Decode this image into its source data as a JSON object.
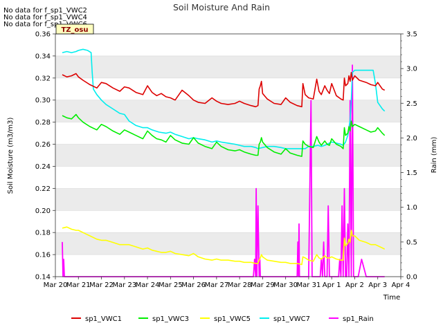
{
  "chart_data": {
    "type": "line",
    "title": "Soil Moisture And Rain",
    "xlabel": "Time",
    "ylabel": "Soil Moisture (m3/m3)",
    "y2label": "Rain (mm)",
    "xlim": [
      0,
      15
    ],
    "ylim": [
      0.14,
      0.36
    ],
    "y2lim": [
      0.0,
      3.5
    ],
    "x_ticks": [
      0,
      1,
      2,
      3,
      4,
      5,
      6,
      7,
      8,
      9,
      10,
      11,
      12,
      13,
      14,
      15
    ],
    "x_tick_labels": [
      "Mar 20",
      "Mar 21",
      "Mar 22",
      "Mar 23",
      "Mar 24",
      "Mar 25",
      "Mar 26",
      "Mar 27",
      "Mar 28",
      "Mar 29",
      "Mar 30",
      "Mar 31",
      "Apr 1",
      "Apr 2",
      "Apr 3",
      "Apr 4"
    ],
    "y_ticks": [
      "0.14",
      "0.16",
      "0.18",
      "0.20",
      "0.22",
      "0.24",
      "0.26",
      "0.28",
      "0.30",
      "0.32",
      "0.34",
      "0.36"
    ],
    "y2_ticks": [
      "0.0",
      "0.5",
      "1.0",
      "1.5",
      "2.0",
      "2.5",
      "3.0",
      "3.5"
    ],
    "nodata_messages": [
      "No data for f_sp1_VWC2",
      "No data for f_sp1_VWC4",
      "No data for f_sp1_VWC6"
    ],
    "badge": "TZ_osu",
    "legend_position": "bottom",
    "colors": {
      "band": "#ebebeb",
      "grid": "#d9d9d9"
    },
    "series": [
      {
        "name": "sp1_VWC1",
        "color": "#dd0000",
        "axis": "left",
        "x": [
          0.3,
          0.5,
          0.7,
          0.9,
          1.0,
          1.2,
          1.5,
          1.8,
          2.0,
          2.2,
          2.5,
          2.8,
          3.0,
          3.2,
          3.5,
          3.8,
          4.0,
          4.2,
          4.4,
          4.6,
          4.8,
          5.0,
          5.2,
          5.5,
          5.8,
          6.0,
          6.2,
          6.5,
          6.8,
          7.0,
          7.2,
          7.5,
          7.8,
          8.0,
          8.2,
          8.5,
          8.7,
          8.8,
          8.85,
          8.9,
          8.95,
          9.0,
          9.2,
          9.5,
          9.8,
          10.0,
          10.2,
          10.5,
          10.7,
          10.75,
          10.85,
          11.0,
          11.2,
          11.35,
          11.45,
          11.55,
          11.7,
          11.8,
          11.9,
          12.0,
          12.2,
          12.4,
          12.5,
          12.55,
          12.6,
          12.7,
          12.75,
          12.8,
          12.85,
          12.9,
          13.0,
          13.2,
          13.5,
          13.7,
          13.9,
          14.0,
          14.2,
          14.3
        ],
        "y": [
          0.323,
          0.321,
          0.322,
          0.324,
          0.321,
          0.318,
          0.314,
          0.311,
          0.316,
          0.315,
          0.311,
          0.308,
          0.312,
          0.311,
          0.307,
          0.305,
          0.313,
          0.307,
          0.304,
          0.306,
          0.303,
          0.302,
          0.3,
          0.309,
          0.304,
          0.3,
          0.298,
          0.297,
          0.302,
          0.299,
          0.297,
          0.296,
          0.297,
          0.299,
          0.297,
          0.295,
          0.294,
          0.295,
          0.31,
          0.313,
          0.317,
          0.306,
          0.301,
          0.297,
          0.296,
          0.302,
          0.298,
          0.295,
          0.294,
          0.315,
          0.305,
          0.302,
          0.301,
          0.319,
          0.308,
          0.305,
          0.313,
          0.309,
          0.306,
          0.315,
          0.304,
          0.301,
          0.3,
          0.32,
          0.313,
          0.315,
          0.322,
          0.317,
          0.325,
          0.318,
          0.322,
          0.318,
          0.316,
          0.314,
          0.313,
          0.316,
          0.31,
          0.309
        ]
      },
      {
        "name": "sp1_VWC3",
        "color": "#00ee00",
        "axis": "left",
        "x": [
          0.3,
          0.5,
          0.7,
          0.9,
          1.0,
          1.2,
          1.5,
          1.8,
          2.0,
          2.2,
          2.5,
          2.8,
          3.0,
          3.2,
          3.5,
          3.8,
          4.0,
          4.2,
          4.4,
          4.6,
          4.8,
          5.0,
          5.2,
          5.5,
          5.8,
          6.0,
          6.2,
          6.5,
          6.8,
          7.0,
          7.2,
          7.5,
          7.8,
          8.0,
          8.2,
          8.5,
          8.7,
          8.8,
          8.85,
          8.9,
          8.95,
          9.0,
          9.2,
          9.5,
          9.8,
          10.0,
          10.2,
          10.5,
          10.7,
          10.75,
          10.85,
          11.0,
          11.2,
          11.35,
          11.45,
          11.55,
          11.7,
          11.8,
          11.9,
          12.0,
          12.2,
          12.4,
          12.5,
          12.55,
          12.6,
          12.7,
          12.75,
          12.8,
          12.85,
          12.9,
          13.0,
          13.2,
          13.5,
          13.7,
          13.9,
          14.0,
          14.2,
          14.3
        ],
        "y": [
          0.286,
          0.284,
          0.283,
          0.287,
          0.284,
          0.28,
          0.276,
          0.273,
          0.278,
          0.276,
          0.272,
          0.269,
          0.273,
          0.271,
          0.268,
          0.265,
          0.272,
          0.268,
          0.265,
          0.264,
          0.262,
          0.268,
          0.264,
          0.261,
          0.26,
          0.266,
          0.261,
          0.258,
          0.256,
          0.262,
          0.258,
          0.255,
          0.254,
          0.255,
          0.253,
          0.251,
          0.25,
          0.25,
          0.26,
          0.262,
          0.266,
          0.262,
          0.257,
          0.253,
          0.251,
          0.256,
          0.252,
          0.25,
          0.249,
          0.263,
          0.26,
          0.258,
          0.257,
          0.267,
          0.262,
          0.259,
          0.263,
          0.26,
          0.259,
          0.265,
          0.26,
          0.258,
          0.256,
          0.275,
          0.268,
          0.27,
          0.276,
          0.272,
          0.281,
          0.276,
          0.278,
          0.276,
          0.273,
          0.271,
          0.272,
          0.275,
          0.27,
          0.268
        ]
      },
      {
        "name": "sp1_VWC5",
        "color": "#ffff00",
        "axis": "left",
        "x": [
          0.3,
          0.5,
          0.7,
          0.9,
          1.0,
          1.2,
          1.5,
          1.8,
          2.0,
          2.2,
          2.5,
          2.8,
          3.0,
          3.2,
          3.5,
          3.8,
          4.0,
          4.2,
          4.4,
          4.6,
          4.8,
          5.0,
          5.2,
          5.5,
          5.8,
          6.0,
          6.2,
          6.5,
          6.8,
          7.0,
          7.2,
          7.5,
          7.8,
          8.0,
          8.2,
          8.5,
          8.7,
          8.8,
          8.85,
          8.9,
          8.95,
          9.0,
          9.2,
          9.5,
          9.8,
          10.0,
          10.2,
          10.5,
          10.7,
          10.75,
          10.85,
          11.0,
          11.2,
          11.35,
          11.45,
          11.55,
          11.7,
          11.8,
          11.9,
          12.0,
          12.2,
          12.4,
          12.5,
          12.55,
          12.6,
          12.7,
          12.75,
          12.8,
          12.85,
          12.9,
          13.0,
          13.2,
          13.5,
          13.7,
          13.9,
          14.0,
          14.2,
          14.3
        ],
        "y": [
          0.184,
          0.185,
          0.183,
          0.182,
          0.182,
          0.18,
          0.177,
          0.174,
          0.173,
          0.173,
          0.171,
          0.169,
          0.169,
          0.169,
          0.167,
          0.165,
          0.166,
          0.164,
          0.163,
          0.162,
          0.162,
          0.163,
          0.161,
          0.16,
          0.159,
          0.161,
          0.158,
          0.156,
          0.155,
          0.156,
          0.155,
          0.155,
          0.154,
          0.154,
          0.153,
          0.153,
          0.152,
          0.152,
          0.155,
          0.157,
          0.16,
          0.158,
          0.155,
          0.154,
          0.153,
          0.153,
          0.152,
          0.152,
          0.151,
          0.158,
          0.157,
          0.155,
          0.154,
          0.16,
          0.157,
          0.156,
          0.159,
          0.157,
          0.157,
          0.158,
          0.156,
          0.155,
          0.155,
          0.175,
          0.168,
          0.17,
          0.174,
          0.171,
          0.182,
          0.177,
          0.177,
          0.173,
          0.171,
          0.169,
          0.169,
          0.168,
          0.166,
          0.165
        ]
      },
      {
        "name": "sp1_VWC7",
        "color": "#00eeee",
        "axis": "left",
        "x": [
          0.3,
          0.5,
          0.7,
          0.9,
          1.0,
          1.2,
          1.4,
          1.55,
          1.6,
          1.65,
          1.8,
          2.0,
          2.2,
          2.5,
          2.8,
          3.0,
          3.2,
          3.5,
          3.8,
          4.0,
          4.2,
          4.5,
          4.8,
          5.0,
          5.2,
          5.5,
          5.8,
          6.0,
          6.2,
          6.5,
          6.8,
          7.0,
          7.2,
          7.5,
          7.8,
          8.0,
          8.2,
          8.5,
          8.7,
          8.8,
          9.0,
          9.2,
          9.5,
          9.8,
          10.0,
          10.2,
          10.5,
          10.7,
          10.85,
          11.0,
          11.2,
          11.4,
          11.55,
          11.7,
          11.9,
          12.0,
          12.2,
          12.4,
          12.5,
          12.6,
          12.7,
          12.75,
          12.8,
          12.85,
          12.9,
          13.0,
          13.2,
          13.4,
          13.6,
          13.8,
          13.9,
          14.0,
          14.2,
          14.3
        ],
        "y": [
          0.343,
          0.344,
          0.343,
          0.344,
          0.345,
          0.346,
          0.345,
          0.343,
          0.325,
          0.31,
          0.305,
          0.3,
          0.296,
          0.292,
          0.288,
          0.287,
          0.281,
          0.277,
          0.275,
          0.275,
          0.273,
          0.271,
          0.27,
          0.271,
          0.269,
          0.267,
          0.265,
          0.266,
          0.265,
          0.264,
          0.262,
          0.263,
          0.262,
          0.261,
          0.26,
          0.259,
          0.258,
          0.258,
          0.257,
          0.256,
          0.257,
          0.258,
          0.258,
          0.257,
          0.256,
          0.256,
          0.256,
          0.256,
          0.256,
          0.258,
          0.258,
          0.259,
          0.258,
          0.259,
          0.261,
          0.262,
          0.261,
          0.26,
          0.259,
          0.262,
          0.268,
          0.275,
          0.282,
          0.3,
          0.325,
          0.327,
          0.327,
          0.327,
          0.327,
          0.327,
          0.315,
          0.298,
          0.292,
          0.29
        ]
      },
      {
        "name": "sp1_Rain",
        "color": "#ff00ff",
        "axis": "right",
        "x": [
          0.3,
          0.33,
          0.36,
          0.39,
          0.42,
          1.0,
          2.0,
          3.0,
          4.0,
          5.0,
          6.0,
          7.0,
          8.0,
          8.6,
          8.65,
          8.7,
          8.72,
          8.75,
          8.8,
          8.85,
          8.88,
          8.9,
          9.0,
          10.0,
          10.5,
          10.53,
          10.56,
          10.58,
          10.6,
          10.63,
          10.66,
          10.7,
          11.0,
          11.1,
          11.15,
          11.2,
          11.5,
          11.55,
          11.6,
          11.65,
          11.7,
          11.75,
          11.8,
          11.85,
          11.9,
          12.0,
          12.3,
          12.35,
          12.4,
          12.45,
          12.5,
          12.55,
          12.6,
          12.65,
          12.7,
          12.75,
          12.8,
          12.85,
          12.9,
          12.95,
          13.0,
          13.05,
          13.1,
          13.15,
          13.3,
          13.5,
          14.0,
          14.3
        ],
        "y": [
          0.5,
          0.0,
          0.25,
          0.0,
          0.0,
          0.0,
          0.0,
          0.0,
          0.0,
          0.0,
          0.0,
          0.0,
          0.0,
          0.0,
          0.25,
          0.0,
          1.27,
          0.0,
          1.02,
          0.0,
          0.25,
          0.0,
          0.0,
          0.0,
          0.0,
          0.5,
          0.0,
          0.76,
          0.0,
          0.0,
          0.0,
          0.0,
          0.0,
          2.54,
          0.0,
          0.0,
          0.0,
          0.25,
          0.0,
          0.5,
          0.0,
          0.0,
          0.0,
          1.02,
          0.0,
          0.0,
          0.0,
          0.25,
          0.0,
          1.02,
          0.0,
          1.27,
          0.0,
          0.0,
          0.76,
          0.0,
          2.54,
          0.0,
          3.05,
          0.0,
          0.0,
          0.0,
          0.0,
          0.0,
          0.25,
          0.0,
          0.0,
          0.0
        ]
      }
    ]
  }
}
